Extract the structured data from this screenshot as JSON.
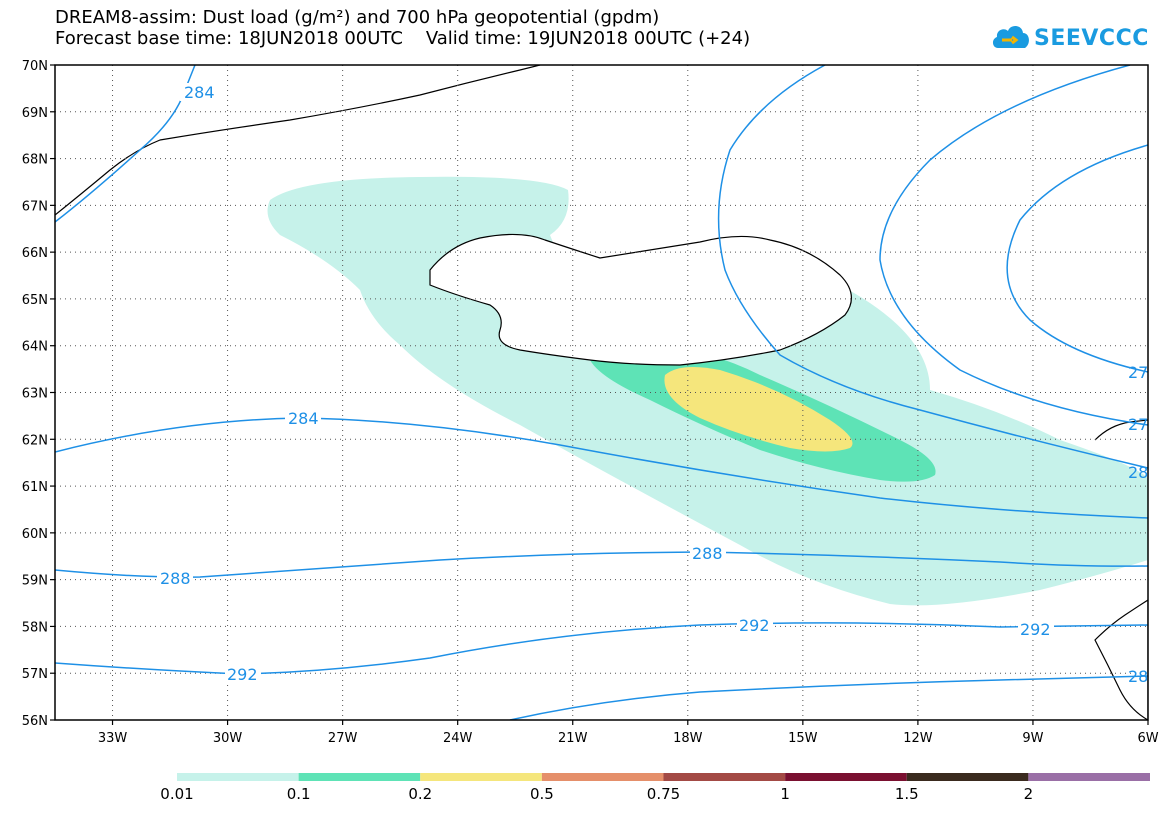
{
  "title": {
    "line1": "DREAM8-assim: Dust load (g/m²) and 700 hPa geopotential (gpdm)",
    "line2": "Forecast base time: 18JUN2018 00UTC    Valid time: 19JUN2018 00UTC (+24)"
  },
  "logo": {
    "text": "SEEVCCC",
    "icon": "cloud-icon"
  },
  "map": {
    "lat_ticks": [
      "70N",
      "69N",
      "68N",
      "67N",
      "66N",
      "65N",
      "64N",
      "63N",
      "62N",
      "61N",
      "60N",
      "59N",
      "58N",
      "57N",
      "56N"
    ],
    "lon_ticks": [
      "33W",
      "30W",
      "27W",
      "24W",
      "21W",
      "18W",
      "15W",
      "12W",
      "9W",
      "6W"
    ],
    "lat_range": [
      56,
      70
    ],
    "lon_range": [
      -34.5,
      -6
    ],
    "grid": "dotted",
    "contour_labels": [
      "284",
      "284",
      "288",
      "288",
      "292",
      "292",
      "292",
      "27",
      "27",
      "28",
      "28"
    ]
  },
  "colorbar": {
    "labels": [
      "0.01",
      "0.1",
      "0.2",
      "0.5",
      "0.75",
      "1",
      "1.5",
      "2"
    ],
    "colors": [
      "#c6f2ea",
      "#5ee3b6",
      "#f5e67c",
      "#e58f6a",
      "#a34a45",
      "#7a1030",
      "#3a2a1e",
      "#9a6fa6"
    ]
  },
  "colors": {
    "contour": "#1e90e6",
    "land": "#ffffff",
    "coast": "#000000"
  }
}
